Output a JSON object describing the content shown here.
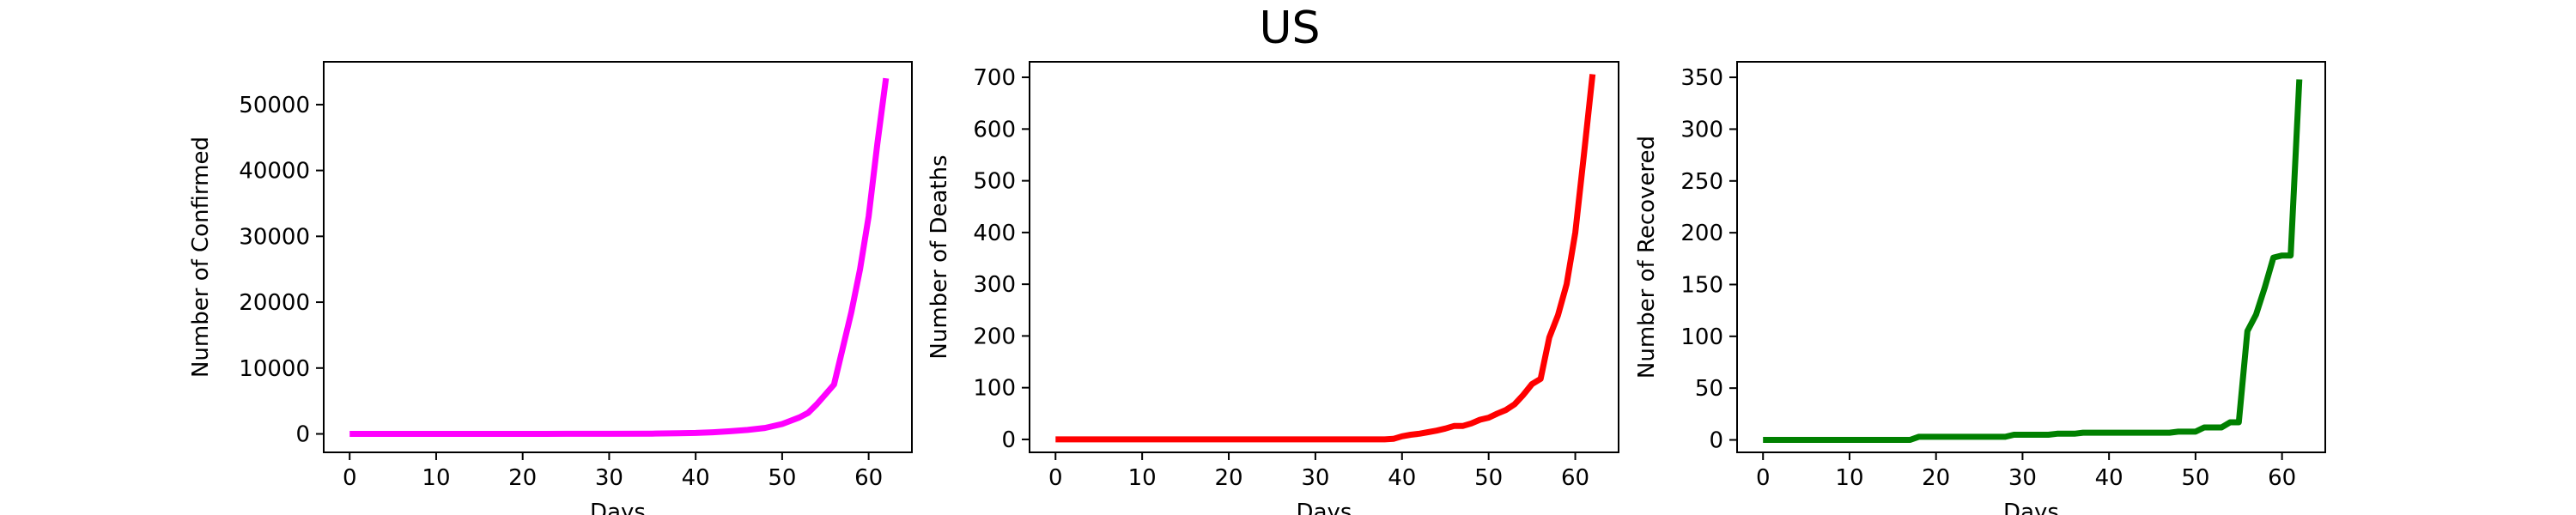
{
  "figure": {
    "title": "US"
  },
  "chart_data": [
    {
      "type": "line",
      "xlabel": "Days",
      "ylabel": "Number of Confirmed",
      "color": "#ff00ff",
      "xlim": [
        -3,
        65
      ],
      "ylim": [
        -2800,
        56500
      ],
      "xticks": [
        0,
        10,
        20,
        30,
        40,
        50,
        60
      ],
      "yticks": [
        0,
        10000,
        20000,
        30000,
        40000,
        50000
      ],
      "series": [
        {
          "points": [
            [
              0,
              1
            ],
            [
              5,
              1
            ],
            [
              10,
              2
            ],
            [
              15,
              5
            ],
            [
              20,
              8
            ],
            [
              25,
              12
            ],
            [
              30,
              15
            ],
            [
              35,
              40
            ],
            [
              38,
              100
            ],
            [
              40,
              150
            ],
            [
              42,
              250
            ],
            [
              44,
              400
            ],
            [
              46,
              600
            ],
            [
              48,
              900
            ],
            [
              50,
              1500
            ],
            [
              52,
              2500
            ],
            [
              53,
              3200
            ],
            [
              54,
              4500
            ],
            [
              55,
              6000
            ],
            [
              56,
              7500
            ],
            [
              57,
              13000
            ],
            [
              58,
              18500
            ],
            [
              59,
              25000
            ],
            [
              60,
              33000
            ],
            [
              61,
              44000
            ],
            [
              62,
              54000
            ]
          ]
        }
      ]
    },
    {
      "type": "line",
      "xlabel": "Days",
      "ylabel": "Number of Deaths",
      "color": "#ff0000",
      "xlim": [
        -3,
        65
      ],
      "ylim": [
        -25,
        730
      ],
      "xticks": [
        0,
        10,
        20,
        30,
        40,
        50,
        60
      ],
      "yticks": [
        0,
        100,
        200,
        300,
        400,
        500,
        600,
        700
      ],
      "series": [
        {
          "points": [
            [
              0,
              0
            ],
            [
              10,
              0
            ],
            [
              20,
              0
            ],
            [
              30,
              0
            ],
            [
              38,
              0
            ],
            [
              39,
              1
            ],
            [
              40,
              6
            ],
            [
              41,
              9
            ],
            [
              42,
              11
            ],
            [
              43,
              14
            ],
            [
              44,
              17
            ],
            [
              45,
              21
            ],
            [
              46,
              26
            ],
            [
              47,
              26
            ],
            [
              48,
              31
            ],
            [
              49,
              38
            ],
            [
              50,
              42
            ],
            [
              51,
              50
            ],
            [
              52,
              57
            ],
            [
              53,
              68
            ],
            [
              54,
              86
            ],
            [
              55,
              107
            ],
            [
              56,
              117
            ],
            [
              57,
              197
            ],
            [
              58,
              240
            ],
            [
              59,
              300
            ],
            [
              60,
              400
            ],
            [
              61,
              550
            ],
            [
              62,
              706
            ]
          ]
        }
      ]
    },
    {
      "type": "line",
      "xlabel": "Days",
      "ylabel": "Number of Recovered",
      "color": "#008000",
      "xlim": [
        -3,
        65
      ],
      "ylim": [
        -12,
        365
      ],
      "xticks": [
        0,
        10,
        20,
        30,
        40,
        50,
        60
      ],
      "yticks": [
        0,
        50,
        100,
        150,
        200,
        250,
        300,
        350
      ],
      "series": [
        {
          "points": [
            [
              0,
              0
            ],
            [
              17,
              0
            ],
            [
              18,
              3
            ],
            [
              28,
              3
            ],
            [
              29,
              5
            ],
            [
              33,
              5
            ],
            [
              34,
              6
            ],
            [
              36,
              6
            ],
            [
              37,
              7
            ],
            [
              47,
              7
            ],
            [
              48,
              8
            ],
            [
              50,
              8
            ],
            [
              51,
              12
            ],
            [
              53,
              12
            ],
            [
              54,
              17
            ],
            [
              55,
              17
            ],
            [
              56,
              105
            ],
            [
              57,
              121
            ],
            [
              58,
              147
            ],
            [
              59,
              176
            ],
            [
              60,
              178
            ],
            [
              61,
              178
            ],
            [
              62,
              348
            ]
          ]
        }
      ]
    }
  ]
}
